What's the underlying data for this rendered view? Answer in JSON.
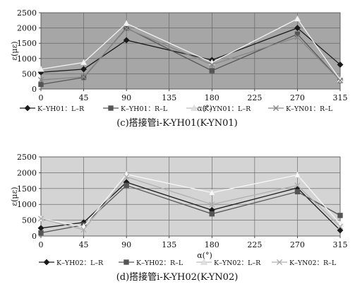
{
  "chart_data": [
    {
      "type": "line",
      "caption": "(c)搭接管i-K-YH01(K-YN01)",
      "xlabel": "α(°)",
      "ylabel": "ε(με)",
      "x": [
        0,
        45,
        90,
        135,
        180,
        225,
        270,
        315
      ],
      "x_ticks": [
        "0",
        "45",
        "90",
        "135",
        "180",
        "225",
        "270",
        "315"
      ],
      "y_ticks": [
        "0",
        "500",
        "1000",
        "1500",
        "2000",
        "2500"
      ],
      "xlim": [
        0,
        315
      ],
      "ylim": [
        0,
        2500
      ],
      "grid": true,
      "plot_background": "#a6a6a6",
      "legend_position": "bottom",
      "series": [
        {
          "name": "K–YH01：L–R",
          "marker": "diamond",
          "color": "#1a1a1a",
          "points": [
            [
              0,
              550
            ],
            [
              45,
              650
            ],
            [
              90,
              1600
            ],
            [
              180,
              950
            ],
            [
              270,
              2000
            ],
            [
              315,
              800
            ]
          ]
        },
        {
          "name": "K–YH01：R–L",
          "marker": "square",
          "color": "#555555",
          "points": [
            [
              0,
              150
            ],
            [
              45,
              380
            ],
            [
              90,
              2000
            ],
            [
              180,
              600
            ],
            [
              270,
              1800
            ],
            [
              315,
              280
            ]
          ]
        },
        {
          "name": "K–YN01：L–R",
          "marker": "triangle",
          "color": "#f2f2f2",
          "points": [
            [
              0,
              650
            ],
            [
              45,
              870
            ],
            [
              90,
              2150
            ],
            [
              180,
              870
            ],
            [
              270,
              2300
            ],
            [
              315,
              300
            ]
          ]
        },
        {
          "name": "K–YN01：R–L",
          "marker": "x",
          "color": "#888888",
          "points": [
            [
              0,
              300
            ],
            [
              45,
              400
            ],
            [
              90,
              1980
            ],
            [
              180,
              800
            ],
            [
              270,
              1700
            ],
            [
              315,
              280
            ]
          ]
        }
      ]
    },
    {
      "type": "line",
      "caption": "(d)搭接管i-K-YH02(K-YN02)",
      "xlabel": "α(°)",
      "ylabel": "ε(με)",
      "x": [
        0,
        45,
        90,
        135,
        180,
        225,
        270,
        315
      ],
      "x_ticks": [
        "0",
        "45",
        "90",
        "135",
        "180",
        "225",
        "270",
        "315"
      ],
      "y_ticks": [
        "0",
        "500",
        "1000",
        "1500",
        "2000",
        "2500"
      ],
      "xlim": [
        0,
        315
      ],
      "ylim": [
        0,
        2500
      ],
      "grid": true,
      "plot_background": "#d4d4d4",
      "legend_position": "bottom",
      "series": [
        {
          "name": "K–YH02：L–R",
          "marker": "diamond",
          "color": "#1a1a1a",
          "points": [
            [
              0,
              250
            ],
            [
              45,
              430
            ],
            [
              90,
              1700
            ],
            [
              180,
              820
            ],
            [
              270,
              1520
            ],
            [
              315,
              180
            ]
          ]
        },
        {
          "name": "K–YH02：R–L",
          "marker": "square",
          "color": "#555555",
          "points": [
            [
              0,
              100
            ],
            [
              45,
              350
            ],
            [
              90,
              1600
            ],
            [
              180,
              700
            ],
            [
              270,
              1400
            ],
            [
              315,
              650
            ]
          ]
        },
        {
          "name": "K–YN02：L–R",
          "marker": "triangle",
          "color": "#f7f7f7",
          "points": [
            [
              0,
              550
            ],
            [
              45,
              300
            ],
            [
              90,
              1950
            ],
            [
              180,
              1370
            ],
            [
              270,
              1930
            ],
            [
              315,
              380
            ]
          ]
        },
        {
          "name": "K–YN02：R–L",
          "marker": "x",
          "color": "#b0b0b0",
          "points": [
            [
              0,
              550
            ],
            [
              45,
              200
            ],
            [
              90,
              1870
            ],
            [
              180,
              1000
            ],
            [
              270,
              1600
            ],
            [
              315,
              300
            ]
          ]
        }
      ]
    }
  ]
}
